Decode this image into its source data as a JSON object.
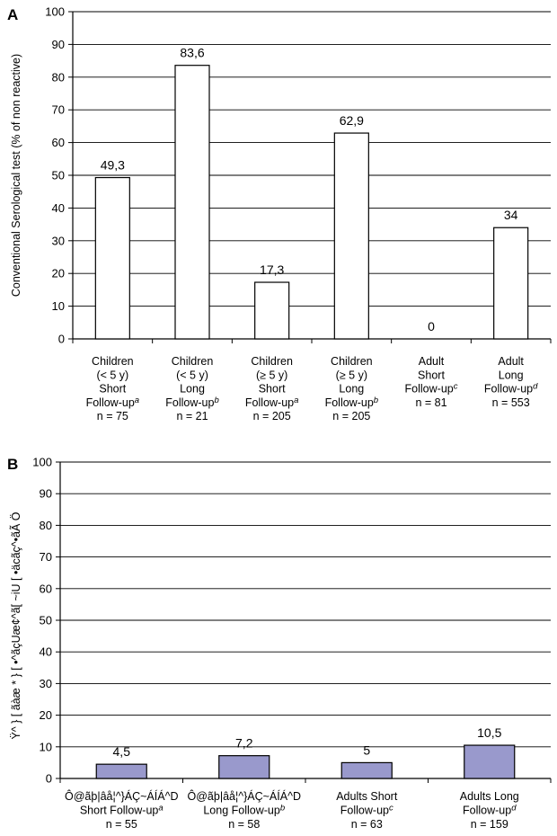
{
  "chart_data": [
    {
      "panel": "A",
      "type": "bar",
      "ylabel": "Conventional Serological test (% of non reactive)",
      "ylim": [
        0,
        100
      ],
      "yticks": [
        0,
        10,
        20,
        30,
        40,
        50,
        60,
        70,
        80,
        90,
        100
      ],
      "grid": true,
      "bar_color": "#ffffff",
      "categories": [
        [
          {
            "t": "Children"
          },
          {
            "t": "(< 5 y)"
          },
          {
            "t": "Short"
          },
          {
            "t": "Follow-up",
            "sup": "a"
          },
          {
            "t": "n = 75"
          }
        ],
        [
          {
            "t": "Children"
          },
          {
            "t": "(< 5 y)"
          },
          {
            "t": "Long"
          },
          {
            "t": "Follow-up",
            "sup": "b"
          },
          {
            "t": "n = 21"
          }
        ],
        [
          {
            "t": "Children"
          },
          {
            "t": "(≥ 5 y)"
          },
          {
            "t": "Short"
          },
          {
            "t": "Follow-up",
            "sup": "a"
          },
          {
            "t": "n = 205"
          }
        ],
        [
          {
            "t": "Children"
          },
          {
            "t": "(≥ 5 y)"
          },
          {
            "t": "Long"
          },
          {
            "t": "Follow-up",
            "sup": "b"
          },
          {
            "t": "n = 205"
          }
        ],
        [
          {
            "t": "Adult"
          },
          {
            "t": "Short"
          },
          {
            "t": "Follow-up",
            "sup": "c"
          },
          {
            "t": "n = 81"
          }
        ],
        [
          {
            "t": "Adult"
          },
          {
            "t": "Long"
          },
          {
            "t": "Follow-up",
            "sup": "d"
          },
          {
            "t": "n = 553"
          }
        ]
      ],
      "values": [
        49.3,
        83.6,
        17.3,
        62.9,
        0,
        34
      ],
      "value_labels": [
        "49,3",
        "83,6",
        "17,3",
        "62,9",
        "0",
        "34"
      ]
    },
    {
      "panel": "B",
      "type": "bar",
      "ylabel": "Ÿ^ } [ ãàæ * } [ •^ãçUæ¢^ã[ ~iU [ •äcãç^•ãÃ Ö",
      "ylim": [
        0,
        100
      ],
      "yticks": [
        0,
        10,
        20,
        30,
        40,
        50,
        60,
        70,
        80,
        90,
        100
      ],
      "grid": true,
      "bar_color": "#9999cc",
      "categories": [
        [
          {
            "t": "Ô@ãþ|âå¦^}ÁÇ~ÁÍÁ^D"
          },
          {
            "t": "Short Follow-up",
            "sup": "a"
          },
          {
            "t": "n = 55"
          }
        ],
        [
          {
            "t": "Ô@ãþ|âå¦^}ÁÇ~ÁÍÁ^D"
          },
          {
            "t": "Long Follow-up",
            "sup": "b"
          },
          {
            "t": "n = 58"
          }
        ],
        [
          {
            "t": "Adults Short"
          },
          {
            "t": "Follow-up",
            "sup": "c"
          },
          {
            "t": "n = 63"
          }
        ],
        [
          {
            "t": "Adults Long"
          },
          {
            "t": "Follow-up",
            "sup": "d"
          },
          {
            "t": "n = 159"
          }
        ]
      ],
      "values": [
        4.5,
        7.2,
        5,
        10.5
      ],
      "value_labels": [
        "4,5",
        "7,2",
        "5",
        "10,5"
      ]
    }
  ]
}
